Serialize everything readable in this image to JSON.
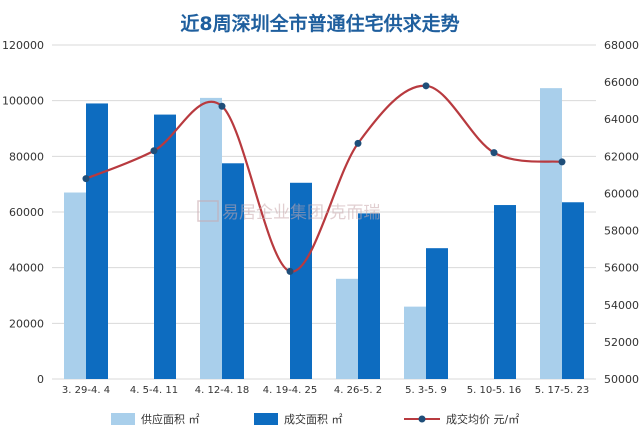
{
  "chart_data": {
    "type": "bar",
    "title": "近8周深圳全市普通住宅供求走势",
    "categories": [
      "3. 29-4. 4",
      "4. 5-4. 11",
      "4. 12-4. 18",
      "4. 19-4. 25",
      "4. 26-5. 2",
      "5. 3-5. 9",
      "5. 10-5. 16",
      "5. 17-5. 23"
    ],
    "series": [
      {
        "name": "供应面积",
        "unit": "㎡",
        "type": "bar",
        "axis": "left",
        "color": "#a9cfeb",
        "values": [
          67000,
          0,
          101000,
          0,
          36000,
          26000,
          0,
          104500
        ]
      },
      {
        "name": "成交面积",
        "unit": "㎡",
        "type": "bar",
        "axis": "left",
        "color": "#0d6cc0",
        "values": [
          99000,
          95000,
          77500,
          70500,
          59500,
          47000,
          62500,
          63500
        ]
      },
      {
        "name": "成交均价",
        "unit": "元/㎡",
        "type": "line",
        "axis": "right",
        "color": "#b83a3f",
        "marker_color": "#1f4e79",
        "values": [
          60800,
          62300,
          64700,
          55800,
          62700,
          65800,
          62200,
          61700
        ]
      }
    ],
    "y_left": {
      "min": 0,
      "max": 120000,
      "ticks": [
        "0",
        "20000",
        "40000",
        "60000",
        "80000",
        "100000",
        "120000"
      ]
    },
    "y_right": {
      "min": 50000,
      "max": 68000,
      "ticks": [
        "50000",
        "52000",
        "54000",
        "56000",
        "58000",
        "60000",
        "62000",
        "64000",
        "66000",
        "68000"
      ]
    },
    "grid": true,
    "legend_position": "bottom",
    "watermark": "易居企业集团·克而瑞"
  }
}
